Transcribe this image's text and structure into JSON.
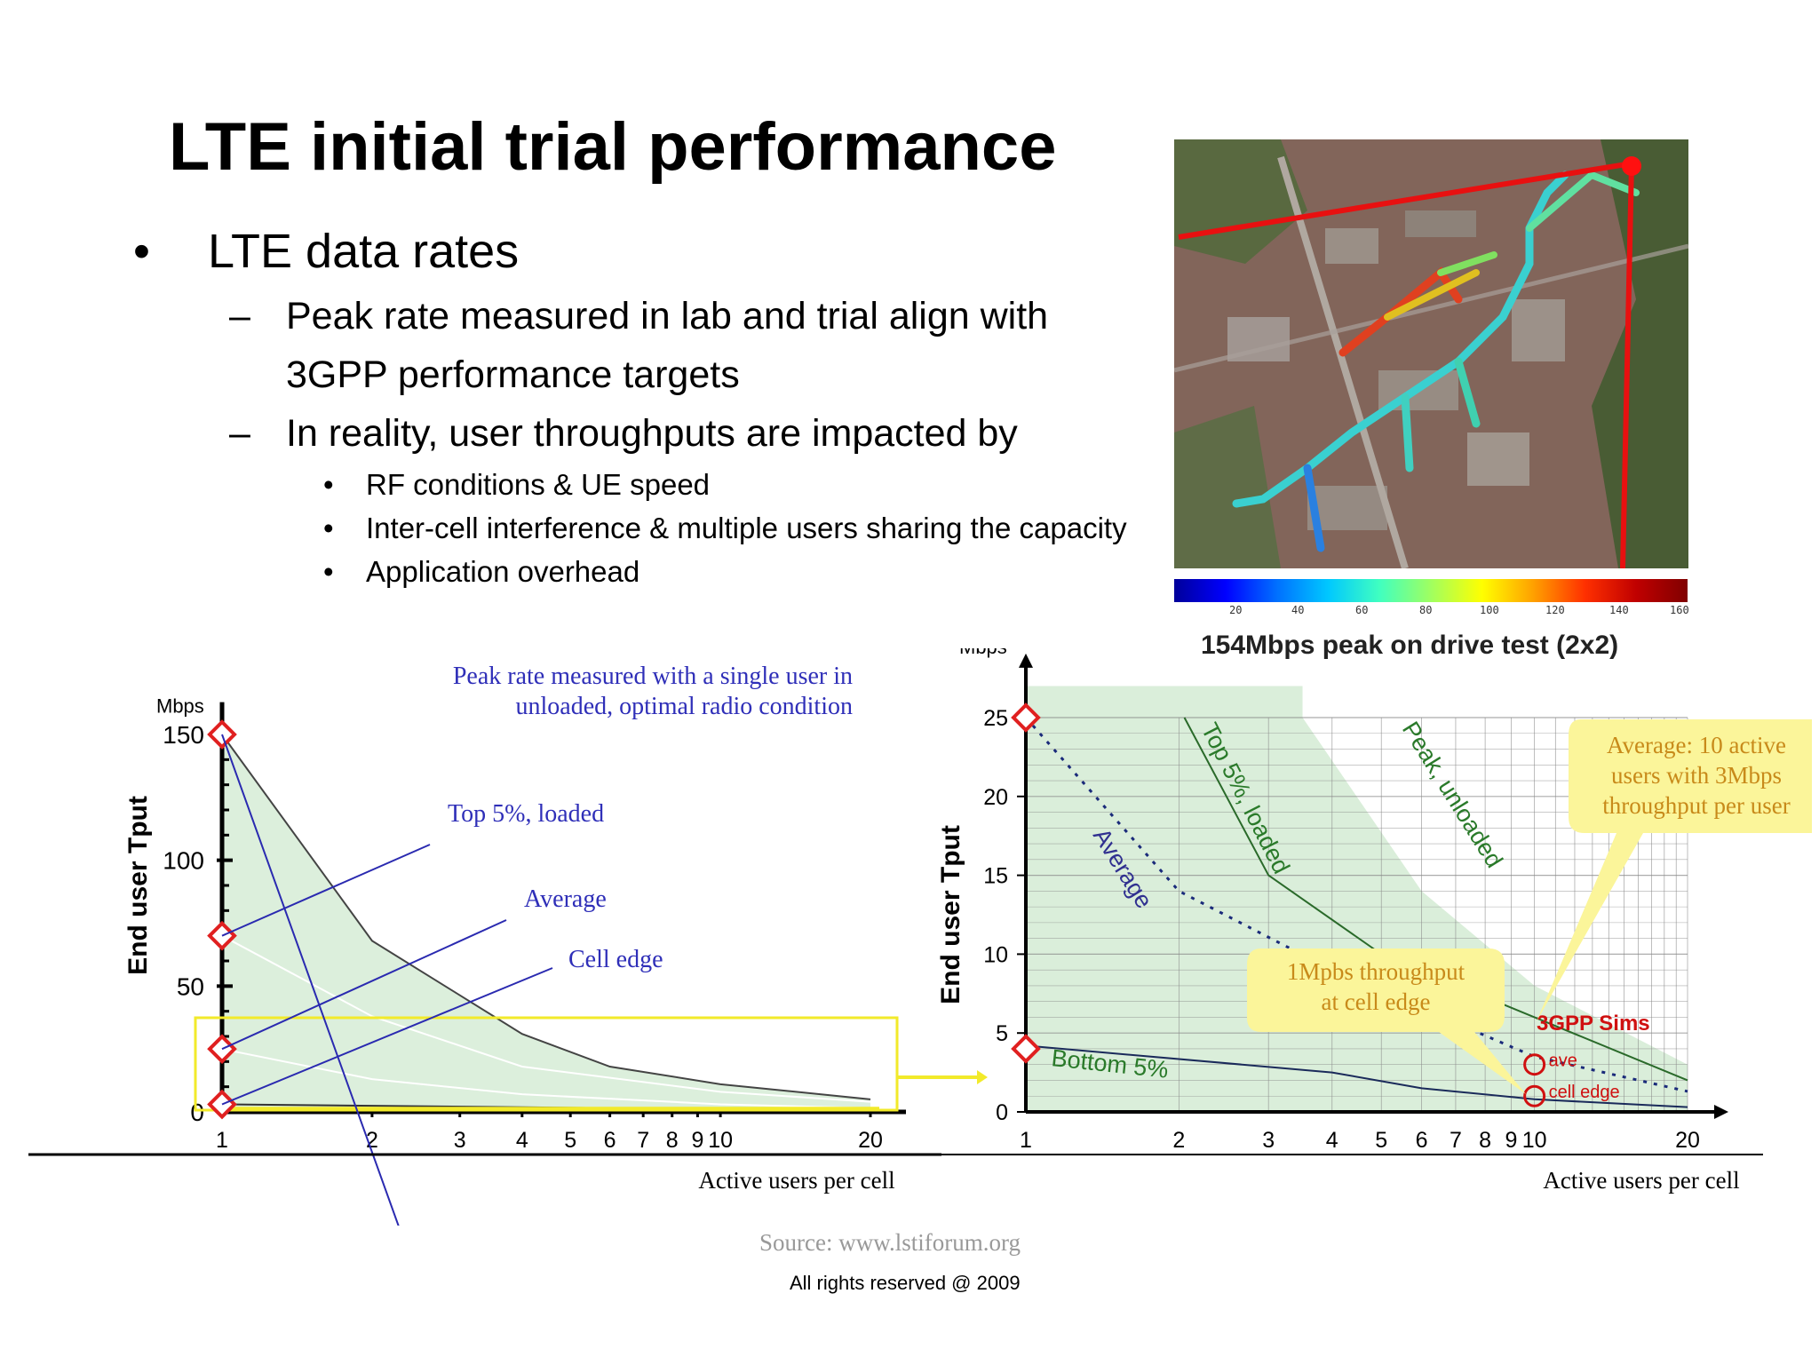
{
  "slide": {
    "title": "LTE initial trial performance",
    "bullet_l1": "LTE data rates",
    "bullets_l2": [
      "Peak rate measured in lab and trial align with",
      "3GPP performance targets",
      "In reality, user throughputs are impacted by"
    ],
    "bullets_l3": [
      "RF conditions & UE speed",
      "Inter-cell interference & multiple users sharing the capacity",
      "Application overhead"
    ],
    "bullet_dot": "•",
    "dash": "–",
    "map_caption": "154Mbps peak on drive test (2x2)",
    "colorbar_ticks": [
      "20",
      "40",
      "60",
      "80",
      "100",
      "120",
      "140",
      "160"
    ],
    "source": "Source:  www.lstiforum.org",
    "rights": "All rights reserved @ 2009"
  },
  "chart_data": [
    {
      "type": "line",
      "xlabel": "Active users per cell",
      "ylabel": "End user Tput",
      "yunit": "Mbps",
      "xscale": "log",
      "xticks": [
        1,
        2,
        3,
        4,
        5,
        6,
        7,
        8,
        9,
        10,
        20
      ],
      "yticks": [
        0,
        50,
        100,
        150
      ],
      "ylim": [
        0,
        160
      ],
      "series": [
        {
          "x": [
            1,
            2,
            4,
            6,
            10,
            20
          ],
          "values": [
            150,
            68,
            31,
            18,
            11,
            5
          ]
        },
        {
          "x": [
            1,
            2,
            4,
            10,
            20
          ],
          "values": [
            70,
            38,
            18,
            8,
            4
          ]
        },
        {
          "x": [
            1,
            2,
            4,
            10,
            20
          ],
          "values": [
            25,
            13,
            7,
            3,
            1.5
          ]
        },
        {
          "x": [
            1,
            20
          ],
          "values": [
            3,
            0.5
          ]
        }
      ],
      "markers": [
        {
          "x": 1,
          "y": 150
        },
        {
          "x": 1,
          "y": 70
        },
        {
          "x": 1,
          "y": 25
        },
        {
          "x": 1,
          "y": 3
        }
      ],
      "annotations": [
        {
          "lines": [
            "Peak rate measured with a single user in",
            "unloaded, optimal radio condition"
          ],
          "color": "#2f2fb8"
        },
        {
          "lines": [
            "Top 5%, loaded"
          ],
          "color": "#2f2fb8"
        },
        {
          "lines": [
            "Average"
          ],
          "color": "#2f2fb8"
        },
        {
          "lines": [
            "Cell edge"
          ],
          "color": "#2f2fb8"
        }
      ],
      "colors": {
        "fill": "#d6ecd6",
        "highlight": "#f2ea2a",
        "marker": "#e02020",
        "leader": "#2a2ab0"
      }
    },
    {
      "type": "line",
      "xlabel": "Active users per cell",
      "ylabel": "End user Tput",
      "yunit": "Mbps",
      "xscale": "log",
      "xticks": [
        1,
        2,
        3,
        4,
        5,
        6,
        7,
        8,
        9,
        10,
        20
      ],
      "yticks": [
        0,
        5,
        10,
        15,
        20,
        25
      ],
      "ylim": [
        0,
        26
      ],
      "series": [
        {
          "name": "Top 5%, loaded",
          "x": [
            2.05,
            3,
            5,
            10,
            20
          ],
          "values": [
            25,
            15,
            10,
            6,
            2
          ]
        },
        {
          "name": "Average",
          "x": [
            1,
            2,
            4,
            10,
            20
          ],
          "values": [
            25,
            14,
            9,
            3.5,
            1.3
          ]
        },
        {
          "name": "Bottom 5%",
          "x": [
            1,
            4,
            6,
            10,
            20
          ],
          "values": [
            4.2,
            2.5,
            1.5,
            0.8,
            0.3
          ]
        },
        {
          "name": "Peak, unloaded",
          "x": [
            3.5,
            6,
            10,
            20
          ],
          "values": [
            25,
            14,
            8,
            3
          ]
        }
      ],
      "markers": [
        {
          "x": 1,
          "y": 25
        },
        {
          "x": 1,
          "y": 4
        }
      ],
      "sims": {
        "label": "3GPP Sims",
        "points": [
          {
            "label": "ave",
            "x": 10,
            "y": 3
          },
          {
            "label": "cell edge",
            "x": 10,
            "y": 1
          }
        ]
      },
      "callouts": [
        {
          "lines": [
            "Average: 10 active",
            "users with 3Mbps",
            "throughput per user"
          ]
        },
        {
          "lines": [
            "1Mpbs throughput",
            "at cell edge"
          ]
        }
      ],
      "colors": {
        "fill": "#d6ecd6",
        "grid": "#8a8a8a",
        "callout_bg": "#fbf59a",
        "callout_text": "#c88a1a",
        "label_green": "#2a7a2a",
        "label_blue": "#303090",
        "sims": "#d01010"
      }
    }
  ]
}
